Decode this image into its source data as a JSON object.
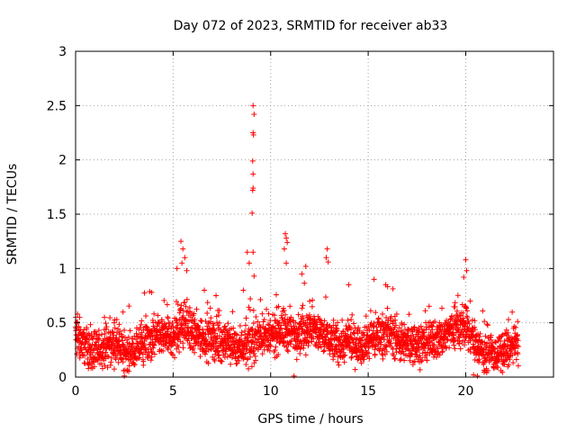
{
  "chart_data": {
    "type": "scatter",
    "title": "Day 072 of 2023, SRMTID for receiver ab33",
    "xlabel": "GPS time / hours",
    "ylabel": "SRMTID / TECUs",
    "xlim": [
      0,
      24.5
    ],
    "ylim": [
      0,
      3
    ],
    "x_ticks": [
      0,
      5,
      10,
      15,
      20
    ],
    "x_tick_labels": [
      "0",
      "5",
      "10",
      "15",
      "20"
    ],
    "y_ticks": [
      0,
      0.5,
      1,
      1.5,
      2,
      2.5,
      3
    ],
    "y_tick_labels": [
      "0",
      "0.5",
      "1",
      "1.5",
      "2",
      "2.5",
      "3"
    ],
    "grid": true,
    "marker": "+",
    "marker_color": "#ff0000",
    "baseline": [
      [
        0,
        0.38
      ],
      [
        0.5,
        0.3
      ],
      [
        1,
        0.22
      ],
      [
        1.5,
        0.28
      ],
      [
        2,
        0.3
      ],
      [
        2.5,
        0.23
      ],
      [
        3,
        0.24
      ],
      [
        3.5,
        0.3
      ],
      [
        4,
        0.36
      ],
      [
        4.5,
        0.38
      ],
      [
        5,
        0.36
      ],
      [
        5.5,
        0.5
      ],
      [
        6,
        0.4
      ],
      [
        6.5,
        0.38
      ],
      [
        7,
        0.35
      ],
      [
        7.5,
        0.32
      ],
      [
        8,
        0.3
      ],
      [
        8.5,
        0.28
      ],
      [
        9,
        0.3
      ],
      [
        9.5,
        0.4
      ],
      [
        10,
        0.35
      ],
      [
        10.5,
        0.45
      ],
      [
        11,
        0.4
      ],
      [
        11.5,
        0.42
      ],
      [
        12,
        0.45
      ],
      [
        12.5,
        0.4
      ],
      [
        13,
        0.35
      ],
      [
        13.5,
        0.3
      ],
      [
        14,
        0.32
      ],
      [
        14.5,
        0.3
      ],
      [
        15,
        0.35
      ],
      [
        15.5,
        0.38
      ],
      [
        16,
        0.42
      ],
      [
        16.5,
        0.35
      ],
      [
        17,
        0.3
      ],
      [
        17.5,
        0.32
      ],
      [
        18,
        0.3
      ],
      [
        18.5,
        0.35
      ],
      [
        19,
        0.4
      ],
      [
        19.5,
        0.48
      ],
      [
        20,
        0.45
      ],
      [
        20.5,
        0.32
      ],
      [
        21,
        0.22
      ],
      [
        21.5,
        0.2
      ],
      [
        22,
        0.24
      ],
      [
        22.7,
        0.3
      ]
    ],
    "spread": 0.12,
    "sample_count": 2600,
    "x_range": [
      0,
      22.7
    ],
    "outliers": [
      {
        "x": 9.1,
        "y": 2.5
      },
      {
        "x": 9.15,
        "y": 2.42
      },
      {
        "x": 9.1,
        "y": 2.25
      },
      {
        "x": 9.12,
        "y": 2.23
      },
      {
        "x": 9.08,
        "y": 1.99
      },
      {
        "x": 9.1,
        "y": 1.87
      },
      {
        "x": 9.1,
        "y": 1.74
      },
      {
        "x": 9.08,
        "y": 1.72
      },
      {
        "x": 9.05,
        "y": 1.51
      },
      {
        "x": 8.8,
        "y": 1.15
      },
      {
        "x": 9.1,
        "y": 1.15
      },
      {
        "x": 8.9,
        "y": 1.05
      },
      {
        "x": 9.15,
        "y": 0.93
      },
      {
        "x": 10.75,
        "y": 1.32
      },
      {
        "x": 10.8,
        "y": 1.28
      },
      {
        "x": 10.85,
        "y": 1.24
      },
      {
        "x": 10.7,
        "y": 1.18
      },
      {
        "x": 10.8,
        "y": 1.05
      },
      {
        "x": 5.4,
        "y": 1.25
      },
      {
        "x": 5.5,
        "y": 1.18
      },
      {
        "x": 5.6,
        "y": 1.1
      },
      {
        "x": 5.45,
        "y": 1.05
      },
      {
        "x": 5.2,
        "y": 1.0
      },
      {
        "x": 5.7,
        "y": 0.98
      },
      {
        "x": 12.9,
        "y": 1.18
      },
      {
        "x": 12.85,
        "y": 1.1
      },
      {
        "x": 12.95,
        "y": 1.06
      },
      {
        "x": 11.8,
        "y": 1.02
      },
      {
        "x": 11.6,
        "y": 0.95
      },
      {
        "x": 20.0,
        "y": 1.08
      },
      {
        "x": 20.05,
        "y": 0.98
      },
      {
        "x": 19.9,
        "y": 0.92
      },
      {
        "x": 15.3,
        "y": 0.9
      },
      {
        "x": 15.9,
        "y": 0.85
      },
      {
        "x": 14.0,
        "y": 0.85
      },
      {
        "x": 3.9,
        "y": 0.78
      },
      {
        "x": 6.6,
        "y": 0.8
      },
      {
        "x": 8.6,
        "y": 0.8
      },
      {
        "x": 7.2,
        "y": 0.75
      },
      {
        "x": 2.5,
        "y": 0.01
      },
      {
        "x": 11.2,
        "y": 0.01
      },
      {
        "x": 20.6,
        "y": 0.01
      },
      {
        "x": 20.4,
        "y": 0.02
      },
      {
        "x": 0.1,
        "y": 0.58
      },
      {
        "x": 0.0,
        "y": 0.55
      }
    ]
  }
}
